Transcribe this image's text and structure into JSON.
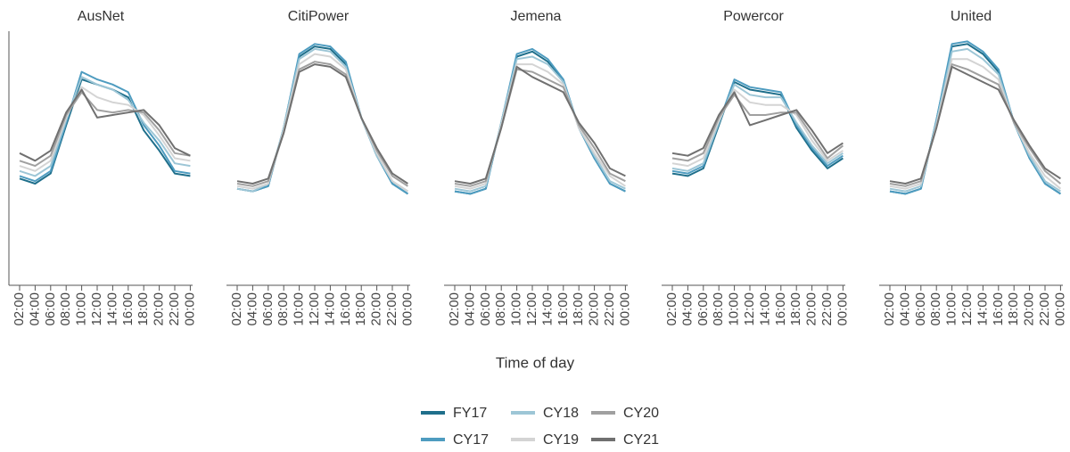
{
  "chart_data": {
    "type": "line",
    "x_label": "Time of day",
    "categories": [
      "02:00",
      "04:00",
      "06:00",
      "08:00",
      "10:00",
      "12:00",
      "14:00",
      "16:00",
      "18:00",
      "20:00",
      "22:00",
      "00:00"
    ],
    "ylim": [
      0,
      100
    ],
    "legend": [
      {
        "name": "FY17",
        "color": "#1f6f8b"
      },
      {
        "name": "CY17",
        "color": "#4e9cc0"
      },
      {
        "name": "CY18",
        "color": "#9dc6d6"
      },
      {
        "name": "CY19",
        "color": "#d4d4d4"
      },
      {
        "name": "CY20",
        "color": "#a0a0a0"
      },
      {
        "name": "CY21",
        "color": "#707070"
      }
    ],
    "panels": [
      {
        "title": "AusNet",
        "series": [
          {
            "values": [
              42,
              40,
              44,
              63,
              81,
              79,
              77,
              74,
              61,
              53,
              44,
              43
            ]
          },
          {
            "values": [
              43,
              41,
              45,
              64,
              84,
              81,
              79,
              76,
              63,
              55,
              45,
              44
            ]
          },
          {
            "values": [
              45,
              43,
              47,
              65,
              82,
              79,
              77,
              73,
              64,
              57,
              48,
              47
            ]
          },
          {
            "values": [
              47,
              45,
              49,
              66,
              78,
              74,
              72,
              71,
              67,
              59,
              50,
              49
            ]
          },
          {
            "values": [
              49,
              47,
              51,
              67,
              76,
              69,
              68,
              69,
              68,
              61,
              52,
              51
            ]
          },
          {
            "values": [
              52,
              49,
              53,
              68,
              77,
              66,
              67,
              68,
              69,
              63,
              54,
              51
            ]
          }
        ]
      },
      {
        "title": "CitiPower",
        "series": [
          {
            "values": [
              38,
              37,
              39,
              62,
              90,
              94,
              93,
              87,
              66,
              51,
              40,
              36
            ]
          },
          {
            "values": [
              38,
              37,
              39,
              62,
              91,
              95,
              94,
              88,
              66,
              51,
              40,
              36
            ]
          },
          {
            "values": [
              38,
              37,
              40,
              62,
              89,
              93,
              92,
              86,
              66,
              51,
              41,
              37
            ]
          },
          {
            "values": [
              39,
              38,
              40,
              61,
              87,
              91,
              90,
              85,
              66,
              52,
              41,
              37
            ]
          },
          {
            "values": [
              40,
              39,
              41,
              60,
              85,
              88,
              87,
              83,
              66,
              53,
              43,
              39
            ]
          },
          {
            "values": [
              41,
              40,
              42,
              60,
              84,
              87,
              86,
              82,
              66,
              54,
              44,
              40
            ]
          }
        ]
      },
      {
        "title": "Jemena",
        "series": [
          {
            "values": [
              37,
              36,
              38,
              64,
              90,
              92,
              88,
              80,
              62,
              50,
              40,
              37
            ]
          },
          {
            "values": [
              37,
              36,
              38,
              64,
              91,
              93,
              89,
              81,
              62,
              50,
              40,
              37
            ]
          },
          {
            "values": [
              38,
              37,
              39,
              64,
              89,
              90,
              87,
              80,
              62,
              51,
              41,
              38
            ]
          },
          {
            "values": [
              39,
              38,
              40,
              63,
              87,
              87,
              84,
              79,
              62,
              52,
              43,
              39
            ]
          },
          {
            "values": [
              40,
              39,
              41,
              62,
              85,
              84,
              81,
              78,
              63,
              54,
              44,
              41
            ]
          },
          {
            "values": [
              41,
              40,
              42,
              62,
              86,
              82,
              79,
              76,
              64,
              56,
              46,
              43
            ]
          }
        ]
      },
      {
        "title": "Powercor",
        "series": [
          {
            "values": [
              44,
              43,
              46,
              63,
              80,
              77,
              76,
              75,
              62,
              53,
              46,
              50
            ]
          },
          {
            "values": [
              45,
              44,
              47,
              64,
              81,
              78,
              77,
              76,
              63,
              54,
              47,
              51
            ]
          },
          {
            "values": [
              46,
              45,
              48,
              64,
              79,
              75,
              74,
              74,
              64,
              55,
              48,
              52
            ]
          },
          {
            "values": [
              48,
              47,
              50,
              65,
              77,
              72,
              71,
              71,
              67,
              57,
              49,
              53
            ]
          },
          {
            "values": [
              50,
              49,
              52,
              66,
              75,
              67,
              67,
              68,
              68,
              59,
              50,
              55
            ]
          },
          {
            "values": [
              52,
              51,
              54,
              67,
              76,
              63,
              65,
              67,
              69,
              61,
              52,
              56
            ]
          }
        ]
      },
      {
        "title": "United",
        "series": [
          {
            "values": [
              37,
              36,
              38,
              65,
              94,
              95,
              91,
              84,
              64,
              50,
              40,
              36
            ]
          },
          {
            "values": [
              37,
              36,
              38,
              65,
              95,
              96,
              92,
              85,
              64,
              50,
              40,
              36
            ]
          },
          {
            "values": [
              38,
              37,
              39,
              64,
              92,
              93,
              89,
              83,
              64,
              51,
              41,
              37
            ]
          },
          {
            "values": [
              39,
              38,
              40,
              63,
              89,
              89,
              86,
              81,
              64,
              52,
              43,
              38
            ]
          },
          {
            "values": [
              40,
              39,
              41,
              62,
              87,
              85,
              82,
              79,
              64,
              54,
              45,
              40
            ]
          },
          {
            "values": [
              41,
              40,
              42,
              62,
              86,
              83,
              80,
              77,
              65,
              55,
              46,
              42
            ]
          }
        ]
      }
    ]
  }
}
